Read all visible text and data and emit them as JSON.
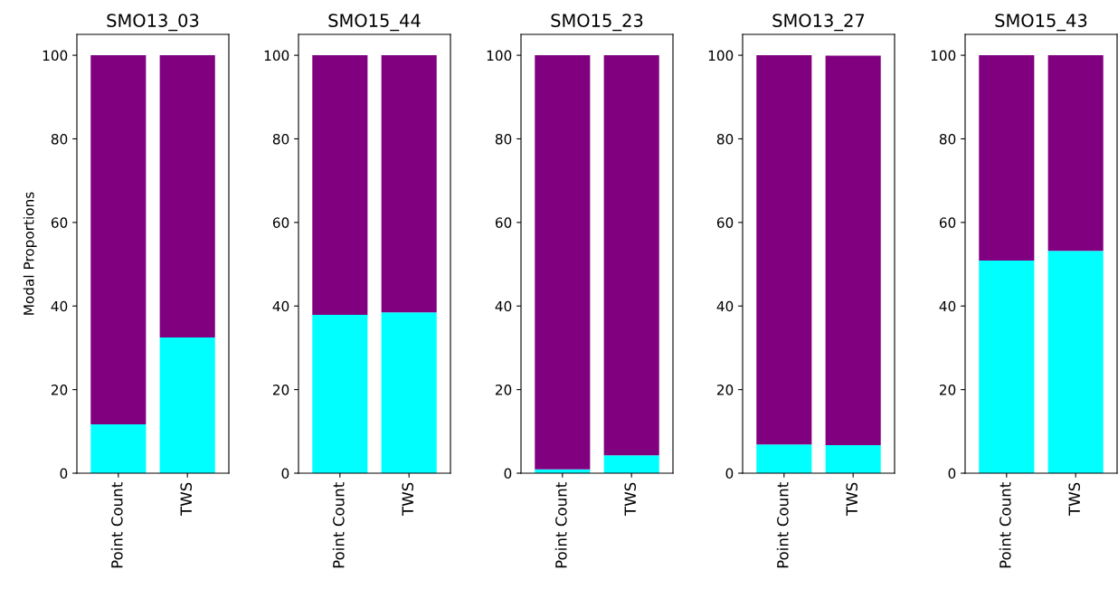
{
  "chart_data": [
    {
      "type": "bar",
      "title": "SMO13_03",
      "ylabel": "Modal Proportions",
      "categories": [
        "Point Count",
        "TWS"
      ],
      "stacked": true,
      "ylim": [
        0,
        105
      ],
      "yticks": [
        0,
        20,
        40,
        60,
        80,
        100
      ],
      "series": [
        {
          "color": "#00ffff",
          "values": [
            11.7,
            32.5
          ]
        },
        {
          "color": "#800080",
          "values": [
            88.3,
            67.5
          ]
        }
      ]
    },
    {
      "type": "bar",
      "title": "SMO15_44",
      "categories": [
        "Point Count",
        "TWS"
      ],
      "stacked": true,
      "ylim": [
        0,
        105
      ],
      "yticks": [
        0,
        20,
        40,
        60,
        80,
        100
      ],
      "series": [
        {
          "color": "#00ffff",
          "values": [
            37.9,
            38.5
          ]
        },
        {
          "color": "#800080",
          "values": [
            62.1,
            61.5
          ]
        }
      ]
    },
    {
      "type": "bar",
      "title": "SMO15_23",
      "categories": [
        "Point Count",
        "TWS"
      ],
      "stacked": true,
      "ylim": [
        0,
        105
      ],
      "yticks": [
        0,
        20,
        40,
        60,
        80,
        100
      ],
      "series": [
        {
          "color": "#00ffff",
          "values": [
            0.9,
            4.3
          ]
        },
        {
          "color": "#800080",
          "values": [
            99.1,
            95.7
          ]
        }
      ]
    },
    {
      "type": "bar",
      "title": "SMO13_27",
      "categories": [
        "Point Count",
        "TWS"
      ],
      "stacked": true,
      "ylim": [
        0,
        105
      ],
      "yticks": [
        0,
        20,
        40,
        60,
        80,
        100
      ],
      "series": [
        {
          "color": "#00ffff",
          "values": [
            6.9,
            6.7
          ]
        },
        {
          "color": "#800080",
          "values": [
            93.1,
            93.2
          ]
        }
      ]
    },
    {
      "type": "bar",
      "title": "SMO15_43",
      "categories": [
        "Point Count",
        "TWS"
      ],
      "stacked": true,
      "ylim": [
        0,
        105
      ],
      "yticks": [
        0,
        20,
        40,
        60,
        80,
        100
      ],
      "series": [
        {
          "color": "#00ffff",
          "values": [
            50.9,
            53.2
          ]
        },
        {
          "color": "#800080",
          "values": [
            49.1,
            46.8
          ]
        }
      ]
    }
  ]
}
